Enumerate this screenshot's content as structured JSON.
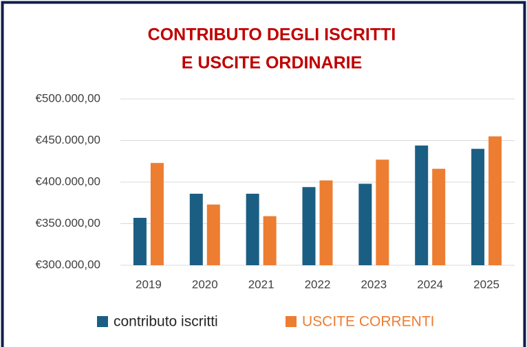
{
  "chart_data": {
    "type": "bar",
    "title": [
      "CONTRIBUTO DEGLI ISCRITTI",
      "E USCITE ORDINARIE"
    ],
    "categories": [
      "2019",
      "2020",
      "2021",
      "2022",
      "2023",
      "2024",
      "2025"
    ],
    "series": [
      {
        "name": "contributo iscritti",
        "color": "#1b5e83",
        "values": [
          357000,
          386000,
          386000,
          394000,
          398000,
          444000,
          440000
        ]
      },
      {
        "name": "USCITE CORRENTI",
        "color": "#ed7d31",
        "values": [
          423000,
          373000,
          359000,
          402000,
          427000,
          416000,
          455000
        ]
      }
    ],
    "ylim": [
      300000,
      500000
    ],
    "yticks": [
      {
        "value": 300000,
        "label": "€300.000,00"
      },
      {
        "value": 350000,
        "label": "€350.000,00"
      },
      {
        "value": 400000,
        "label": "€400.000,00"
      },
      {
        "value": 450000,
        "label": "€450.000,00"
      },
      {
        "value": 500000,
        "label": "€500.000,00"
      }
    ],
    "grid": true,
    "legend": "bottom"
  }
}
